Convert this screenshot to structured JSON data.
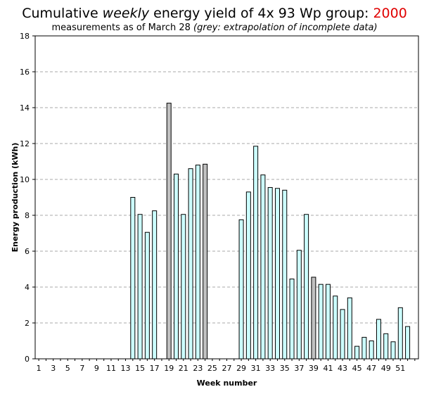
{
  "title": {
    "prefix": "Cumulative ",
    "emph": "weekly",
    "middle": " energy yield of 4x 93 Wp group: ",
    "year": "2000"
  },
  "subtitle": {
    "text": "measurements as of March 28 ",
    "note": "(grey: extrapolation of incomplete data)"
  },
  "colors": {
    "bar_measured": "#ccffff",
    "bar_extrapolated": "#c0c0c0",
    "bar_outline": "#000000",
    "grid": "#aaaaaa",
    "year": "#e00000"
  },
  "chart_data": {
    "type": "bar",
    "xlabel": "Week number",
    "ylabel": "Energy production (kWh)",
    "ylim": [
      0,
      18
    ],
    "yticks": [
      0,
      2,
      4,
      6,
      8,
      10,
      12,
      14,
      16,
      18
    ],
    "xtick_labels": [
      "1",
      "3",
      "5",
      "7",
      "9",
      "11",
      "13",
      "15",
      "17",
      "19",
      "21",
      "23",
      "25",
      "27",
      "29",
      "31",
      "33",
      "35",
      "37",
      "39",
      "41",
      "43",
      "45",
      "47",
      "49",
      "51"
    ],
    "grid": "horizontal dashed",
    "weeks": [
      1,
      2,
      3,
      4,
      5,
      6,
      7,
      8,
      9,
      10,
      11,
      12,
      13,
      14,
      15,
      16,
      17,
      18,
      19,
      20,
      21,
      22,
      23,
      24,
      25,
      26,
      27,
      28,
      29,
      30,
      31,
      32,
      33,
      34,
      35,
      36,
      37,
      38,
      39,
      40,
      41,
      42,
      43,
      44,
      45,
      46,
      47,
      48,
      49,
      50,
      51,
      52,
      53
    ],
    "values": [
      0,
      0,
      0,
      0,
      0,
      0,
      0,
      0,
      0,
      0,
      0,
      0,
      0,
      9.0,
      8.05,
      7.05,
      8.25,
      0,
      14.25,
      10.3,
      8.05,
      10.6,
      10.8,
      10.85,
      0,
      0,
      0,
      0,
      7.75,
      9.3,
      11.85,
      10.25,
      9.55,
      9.5,
      9.4,
      4.45,
      6.05,
      8.05,
      4.55,
      4.15,
      4.15,
      3.5,
      2.75,
      3.4,
      0.7,
      1.2,
      1.0,
      2.2,
      1.4,
      0.95,
      2.85,
      1.8,
      0
    ],
    "extrapolated_weeks": [
      19,
      24,
      39
    ]
  }
}
